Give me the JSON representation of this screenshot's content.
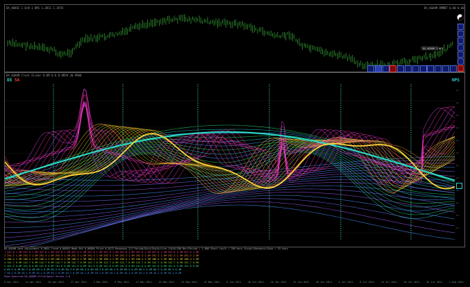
{
  "upper_chart": {
    "title": "DX_ADHSC 1 D/N 1 DM1 1.3RI1 1.3978",
    "top_right": "DX_AGHUM DMNRT 0.00 0.00",
    "tag": "DX_AGHUM 1 NRT"
  },
  "lower_chart": {
    "header": "DX_AGHUM Clock Slider 0.0M 0.0 0.0M39 30.9900",
    "label_left_1": "DX",
    "label_left_2": "SA",
    "label_right": "NPS"
  },
  "stats": {
    "header": "DX_AGHUM Zone Adjustment 0.96G4   Trend 0.00503   Mode 8th 0.00056   Price 0.0272   Response 2/2   Period/Spin/Scale/Line 1/0/0/100   Bar/Period = 1,000 Chart Len/5 = 209 bars   Visual/Harmonic/Span = 25 bars",
    "rows": [
      "1   347.0   1.4M   347.0   1.4M   347.0   1.4M   347.0   1.4M   347.0   1.4M   347.0   1.4M   347.0   1.4M   347.0   1.4M   347.0   1.4M   347.0   1.4M   347.0   1.4M   347.0   1.4M",
      "2   292.3   1.5M   292.3   1.5M   292.3   1.5M   292.3   1.5M   292.3   1.5M   292.3   1.5M   292.3   1.5M   292.3   1.5M   292.3   1.5M   292.3   1.5M   292.3   1.5M   292.3   1.5M",
      "3   188.4   1.3M   188.4   1.3M   188.4   1.3M   188.4   1.3M   188.4   1.3M   188.4   1.3M   188.4   1.3M   188.4   1.3M   188.4   1.3M   188.4   1.3M   188.4   1.3M   188.4   1.3M",
      "4   142.7   0.9M   142.7   0.9M   142.7   0.9M   142.7   0.9M   142.7   0.9M   142.7   0.9M   142.7   0.9M   142.7   0.9M   142.7   0.9M   142.7   0.9M   142.7   0.9M   142.7   0.9M",
      "5   101.8   0.6M   101.8   0.6M   101.8   0.6M   101.8   0.6M   101.8   0.6M   101.8   0.6M   101.8   0.6M   101.8   0.6M   101.8   0.6M   101.8   0.6M   101.8   0.6M   101.8   0.6M",
      "6    68.3   0.4M    68.3   0.4M    68.3   0.4M    68.3   0.4M    68.3   0.4M    68.3   0.4M    68.3   0.4M    68.3   0.4M    68.3   0.4M    68.3   0.4M    68.3   0.4M    68.3   0.4M",
      "7    44.1   0.2M    44.1   0.2M    44.1   0.2M    44.1   0.2M    44.1   0.2M    44.1   0.2M    44.1   0.2M    44.1   0.2M    44.1   0.2M    44.1   0.2M    44.1   0.2M    44.1   0.2M",
      "Peak Spectrum  DX_AGHUM FilterSpect Series 2.0"
    ]
  },
  "time_axis": [
    "8 Apr 2011",
    "14 Apr 2011",
    "20 Apr 2011",
    "27 Apr 2011",
    "3 May 2011",
    "9 May 2011",
    "13 May 2011",
    "19 May 2011",
    "25 May 2011",
    "31 May 2011",
    "6 Jun 2011",
    "10 Jun 2011",
    "16 Jun 2011",
    "22 Jun 2011",
    "28 Jun 2011",
    "4 Jul 2011",
    "8 Jul 2011",
    "14 Jul 2011",
    "20 Jul 2011",
    "26 Jul 2011",
    "1 Aug 2011"
  ],
  "icons": {
    "settings": "yin-yang-icon",
    "timeframe_right": [
      "tf-icon",
      "tf-icon",
      "tf-icon",
      "tf-icon",
      "tf-icon",
      "tf-icon",
      "tf-icon"
    ],
    "timeframe_bottom": [
      "tf-icon",
      "tf-icon",
      "tf-icon",
      "tf-icon",
      "tf-icon",
      "tf-icon",
      "tf-icon",
      "tf-icon",
      "tf-icon",
      "tf-icon",
      "tf-icon",
      "tf-icon"
    ]
  },
  "colors": {
    "candles": "#46d046",
    "dx": "#2bd6c6",
    "sa": "#ff4040"
  }
}
